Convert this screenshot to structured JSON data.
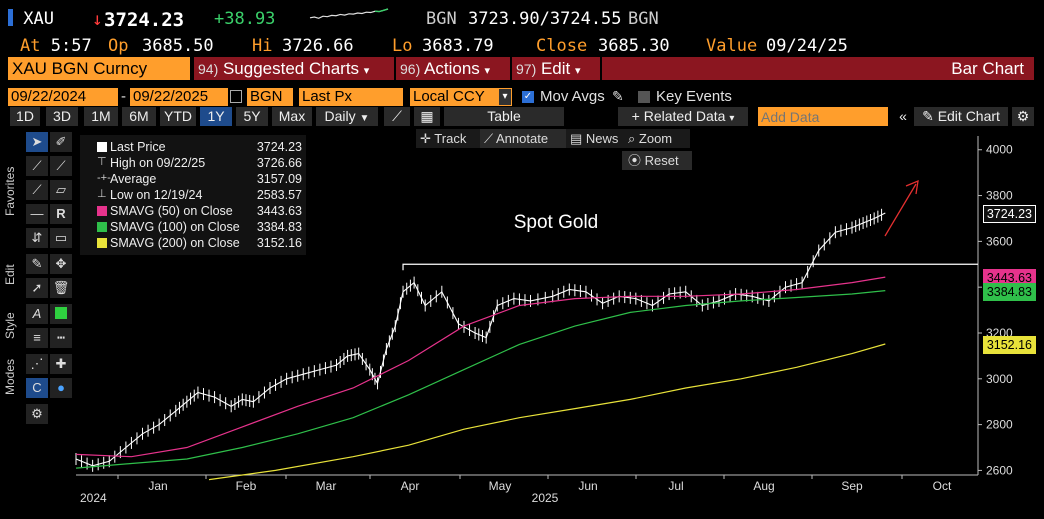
{
  "quote": {
    "ticker": "XAU",
    "last": "3724.23",
    "change": "+38.93",
    "bid_label": "BGN",
    "bid_ask": "3723.90/3724.55",
    "ask_label": "BGN",
    "at_label": "At",
    "time": "5:57",
    "open_label": "Op",
    "open": "3685.50",
    "high_label": "Hi",
    "high": "3726.66",
    "low_label": "Lo",
    "low": "3683.79",
    "close_label": "Close",
    "close": "3685.30",
    "value_label": "Value",
    "value_date": "09/24/25",
    "sparkline": [
      0.45,
      0.5,
      0.42,
      0.55,
      0.52,
      0.6,
      0.58,
      0.66,
      0.62,
      0.7,
      0.68,
      0.75,
      0.72,
      0.8,
      0.78,
      0.86,
      0.84,
      0.92,
      1.0
    ]
  },
  "command_bar": {
    "security": "XAU BGN Curncy",
    "menu1_num": "94)",
    "menu1": "Suggested Charts",
    "menu2_num": "96)",
    "menu2": "Actions",
    "menu3_num": "97)",
    "menu3": "Edit",
    "chart_type": "Bar Chart"
  },
  "toolbar": {
    "start_date": "09/22/2024",
    "dash": "-",
    "end_date": "09/22/2025",
    "source": "BGN",
    "field": "Last Px",
    "currency": "Local CCY",
    "mov_avgs": "Mov Avgs",
    "key_events": "Key Events",
    "ranges": [
      "1D",
      "3D",
      "1M",
      "6M",
      "YTD",
      "1Y",
      "5Y",
      "Max"
    ],
    "selected_range": "1Y",
    "frequency": "Daily",
    "table": "Table",
    "related_data": "Related Data",
    "add_data_placeholder": "Add Data",
    "edit_chart": "Edit Chart"
  },
  "side_tabs": {
    "favorites": "Favorites",
    "edit": "Edit",
    "style": "Style",
    "modes": "Modes"
  },
  "plot_controls": {
    "track": "Track",
    "annotate": "Annotate",
    "news": "News",
    "zoom": "Zoom",
    "reset": "Reset"
  },
  "legend": [
    {
      "name": "Last Price",
      "on": "",
      "value": "3724.23",
      "color": "#ffffff",
      "marker": "square"
    },
    {
      "name": "High on 09/22/25",
      "on": "",
      "value": "3726.66",
      "color": "#cccccc",
      "marker": "high"
    },
    {
      "name": "Average",
      "on": "",
      "value": "3157.09",
      "color": "#cccccc",
      "marker": "avg"
    },
    {
      "name": "Low on 12/19/24",
      "on": "",
      "value": "2583.57",
      "color": "#cccccc",
      "marker": "low"
    },
    {
      "name": "SMAVG (50)",
      "on": "on Close",
      "value": "3443.63",
      "color": "#e6338c",
      "marker": "square"
    },
    {
      "name": "SMAVG (100)",
      "on": "on Close",
      "value": "3384.83",
      "color": "#2fbf4a",
      "marker": "square"
    },
    {
      "name": "SMAVG (200)",
      "on": "on Close",
      "value": "3152.16",
      "color": "#e8e23a",
      "marker": "square"
    }
  ],
  "chart_data": {
    "type": "line",
    "annotation": "Spot Gold",
    "x_labels": [
      "2024",
      "Jan",
      "Feb",
      "Mar",
      "Apr",
      "May",
      "Jun",
      "Jul",
      "Aug",
      "Sep",
      "Oct"
    ],
    "x_year_label": "2025",
    "y_ticks": [
      2600,
      2800,
      3000,
      3200,
      3400,
      3600,
      3800,
      4000
    ],
    "ylim": [
      2580,
      4060
    ],
    "grid": false,
    "resistance_level": 3500,
    "series": [
      {
        "name": "Last Price",
        "color": "#ffffff",
        "points": [
          [
            0,
            2650
          ],
          [
            0.15,
            2620
          ],
          [
            0.3,
            2640
          ],
          [
            0.45,
            2700
          ],
          [
            0.6,
            2760
          ],
          [
            0.75,
            2800
          ],
          [
            0.9,
            2860
          ],
          [
            1.0,
            2900
          ],
          [
            1.1,
            2940
          ],
          [
            1.25,
            2920
          ],
          [
            1.4,
            2880
          ],
          [
            1.5,
            2910
          ],
          [
            1.6,
            2900
          ],
          [
            1.75,
            2960
          ],
          [
            1.9,
            3000
          ],
          [
            2.05,
            3020
          ],
          [
            2.2,
            3040
          ],
          [
            2.35,
            3060
          ],
          [
            2.45,
            3100
          ],
          [
            2.55,
            3110
          ],
          [
            2.65,
            3040
          ],
          [
            2.72,
            2980
          ],
          [
            2.8,
            3130
          ],
          [
            2.88,
            3230
          ],
          [
            2.95,
            3380
          ],
          [
            3.05,
            3420
          ],
          [
            3.15,
            3320
          ],
          [
            3.3,
            3380
          ],
          [
            3.45,
            3240
          ],
          [
            3.6,
            3200
          ],
          [
            3.7,
            3180
          ],
          [
            3.8,
            3320
          ],
          [
            3.95,
            3350
          ],
          [
            4.1,
            3340
          ],
          [
            4.3,
            3360
          ],
          [
            4.45,
            3390
          ],
          [
            4.6,
            3380
          ],
          [
            4.75,
            3330
          ],
          [
            4.9,
            3360
          ],
          [
            5.05,
            3350
          ],
          [
            5.2,
            3320
          ],
          [
            5.35,
            3370
          ],
          [
            5.5,
            3380
          ],
          [
            5.65,
            3320
          ],
          [
            5.8,
            3340
          ],
          [
            5.95,
            3370
          ],
          [
            6.1,
            3360
          ],
          [
            6.25,
            3340
          ],
          [
            6.4,
            3400
          ],
          [
            6.55,
            3420
          ],
          [
            6.7,
            3560
          ],
          [
            6.85,
            3640
          ],
          [
            7.0,
            3660
          ],
          [
            7.1,
            3680
          ],
          [
            7.2,
            3700
          ],
          [
            7.3,
            3724
          ]
        ]
      },
      {
        "name": "SMAVG (50)",
        "color": "#e6338c",
        "points": [
          [
            0,
            2670
          ],
          [
            0.5,
            2660
          ],
          [
            1.0,
            2700
          ],
          [
            1.5,
            2790
          ],
          [
            2.0,
            2880
          ],
          [
            2.5,
            2960
          ],
          [
            3.0,
            3080
          ],
          [
            3.5,
            3230
          ],
          [
            4.0,
            3320
          ],
          [
            4.5,
            3350
          ],
          [
            5.0,
            3360
          ],
          [
            5.5,
            3360
          ],
          [
            6.0,
            3370
          ],
          [
            6.5,
            3390
          ],
          [
            7.0,
            3420
          ],
          [
            7.3,
            3444
          ]
        ]
      },
      {
        "name": "SMAVG (100)",
        "color": "#2fbf4a",
        "points": [
          [
            0,
            2610
          ],
          [
            0.5,
            2630
          ],
          [
            1.0,
            2650
          ],
          [
            1.5,
            2700
          ],
          [
            2.0,
            2760
          ],
          [
            2.5,
            2830
          ],
          [
            3.0,
            2930
          ],
          [
            3.5,
            3040
          ],
          [
            4.0,
            3150
          ],
          [
            4.5,
            3230
          ],
          [
            5.0,
            3290
          ],
          [
            5.5,
            3320
          ],
          [
            6.0,
            3340
          ],
          [
            6.5,
            3355
          ],
          [
            7.0,
            3370
          ],
          [
            7.3,
            3385
          ]
        ]
      },
      {
        "name": "SMAVG (200)",
        "color": "#e8e23a",
        "points": [
          [
            1.2,
            2560
          ],
          [
            1.8,
            2600
          ],
          [
            2.5,
            2660
          ],
          [
            3.0,
            2710
          ],
          [
            3.5,
            2780
          ],
          [
            4.0,
            2830
          ],
          [
            4.5,
            2870
          ],
          [
            5.0,
            2910
          ],
          [
            5.5,
            2960
          ],
          [
            6.0,
            3000
          ],
          [
            6.5,
            3050
          ],
          [
            7.0,
            3110
          ],
          [
            7.3,
            3152
          ]
        ]
      }
    ],
    "price_tags": [
      {
        "value": "3724.23",
        "bg": "#111111",
        "fg": "#ffffff",
        "border": "#ffffff"
      },
      {
        "value": "3443.63",
        "bg": "#e6338c",
        "fg": "#000000",
        "border": "#e6338c"
      },
      {
        "value": "3384.83",
        "bg": "#2fbf4a",
        "fg": "#000000",
        "border": "#2fbf4a"
      },
      {
        "value": "3152.16",
        "bg": "#e8e23a",
        "fg": "#000000",
        "border": "#e8e23a"
      }
    ]
  },
  "colors": {
    "orange": "#ff9e2c",
    "maroon": "#8b1620",
    "toolbar_blue": "#1e4b8c"
  }
}
